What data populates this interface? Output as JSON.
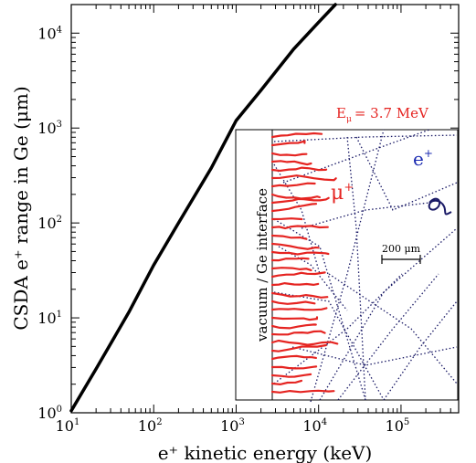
{
  "chart_data": {
    "type": "line",
    "title": "",
    "xlabel": "e⁺ kinetic energy (keV)",
    "ylabel": "CSDA  e⁺ range in Ge (μm)",
    "xscale": "log",
    "yscale": "log",
    "xlim": [
      10,
      500000
    ],
    "ylim": [
      1,
      20000
    ],
    "grid": false,
    "x_ticks": [
      {
        "value": 10,
        "base": "10",
        "exp": "1"
      },
      {
        "value": 100,
        "base": "10",
        "exp": "2"
      },
      {
        "value": 1000,
        "base": "10",
        "exp": "3"
      },
      {
        "value": 10000,
        "base": "10",
        "exp": "4"
      },
      {
        "value": 100000,
        "base": "10",
        "exp": "5"
      }
    ],
    "y_ticks": [
      {
        "value": 1,
        "base": "10",
        "exp": "0"
      },
      {
        "value": 10,
        "base": "10",
        "exp": "1"
      },
      {
        "value": 100,
        "base": "10",
        "exp": "2"
      },
      {
        "value": 1000,
        "base": "10",
        "exp": "3"
      },
      {
        "value": 10000,
        "base": "10",
        "exp": "4"
      }
    ],
    "series": [
      {
        "color": "#000000",
        "x": [
          10,
          20,
          50,
          100,
          200,
          500,
          1000,
          2000,
          5000,
          10000,
          16000
        ],
        "y": [
          1.05,
          2.9,
          11.5,
          36,
          100,
          380,
          1200,
          2500,
          6800,
          13000,
          20000
        ]
      }
    ],
    "inset": {
      "annotation": "E",
      "annotation_sub": "μ",
      "annotation_value": "= 3.7 MeV",
      "region_label": "vacuum / Ge interface",
      "muon_label": "μ",
      "muon_sup": "+",
      "positron_label": "e",
      "positron_sup": "+",
      "scale_bar_label": "200 μm",
      "muon_color": "#e52421",
      "positron_color": "#1a1a66"
    }
  }
}
